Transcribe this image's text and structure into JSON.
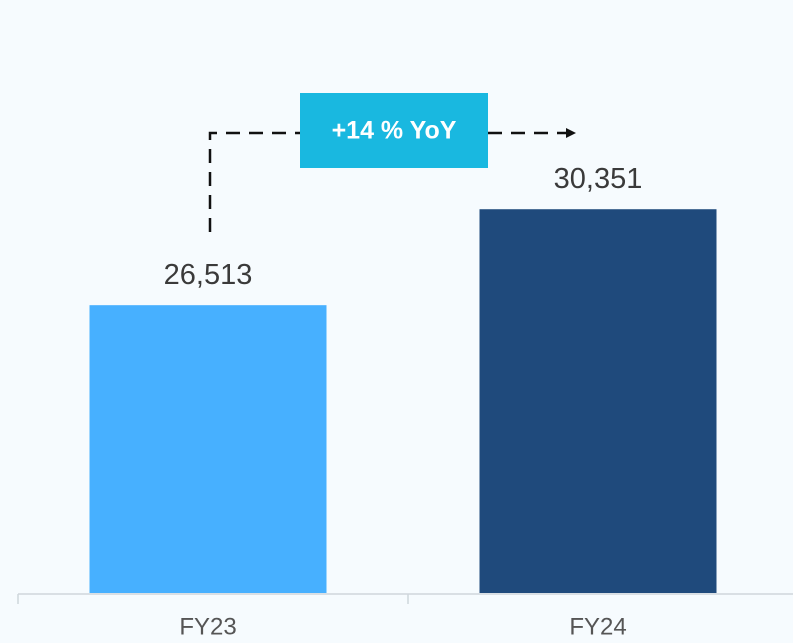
{
  "chart_data": {
    "type": "bar",
    "categories": [
      "FY23",
      "FY24"
    ],
    "values": [
      26513,
      30351
    ],
    "value_labels": [
      "26,513",
      "30,351"
    ],
    "colors": [
      "#47b0ff",
      "#1f4a7c"
    ],
    "ylim": [
      15000,
      38000
    ],
    "annotation": "+14 % YoY"
  }
}
